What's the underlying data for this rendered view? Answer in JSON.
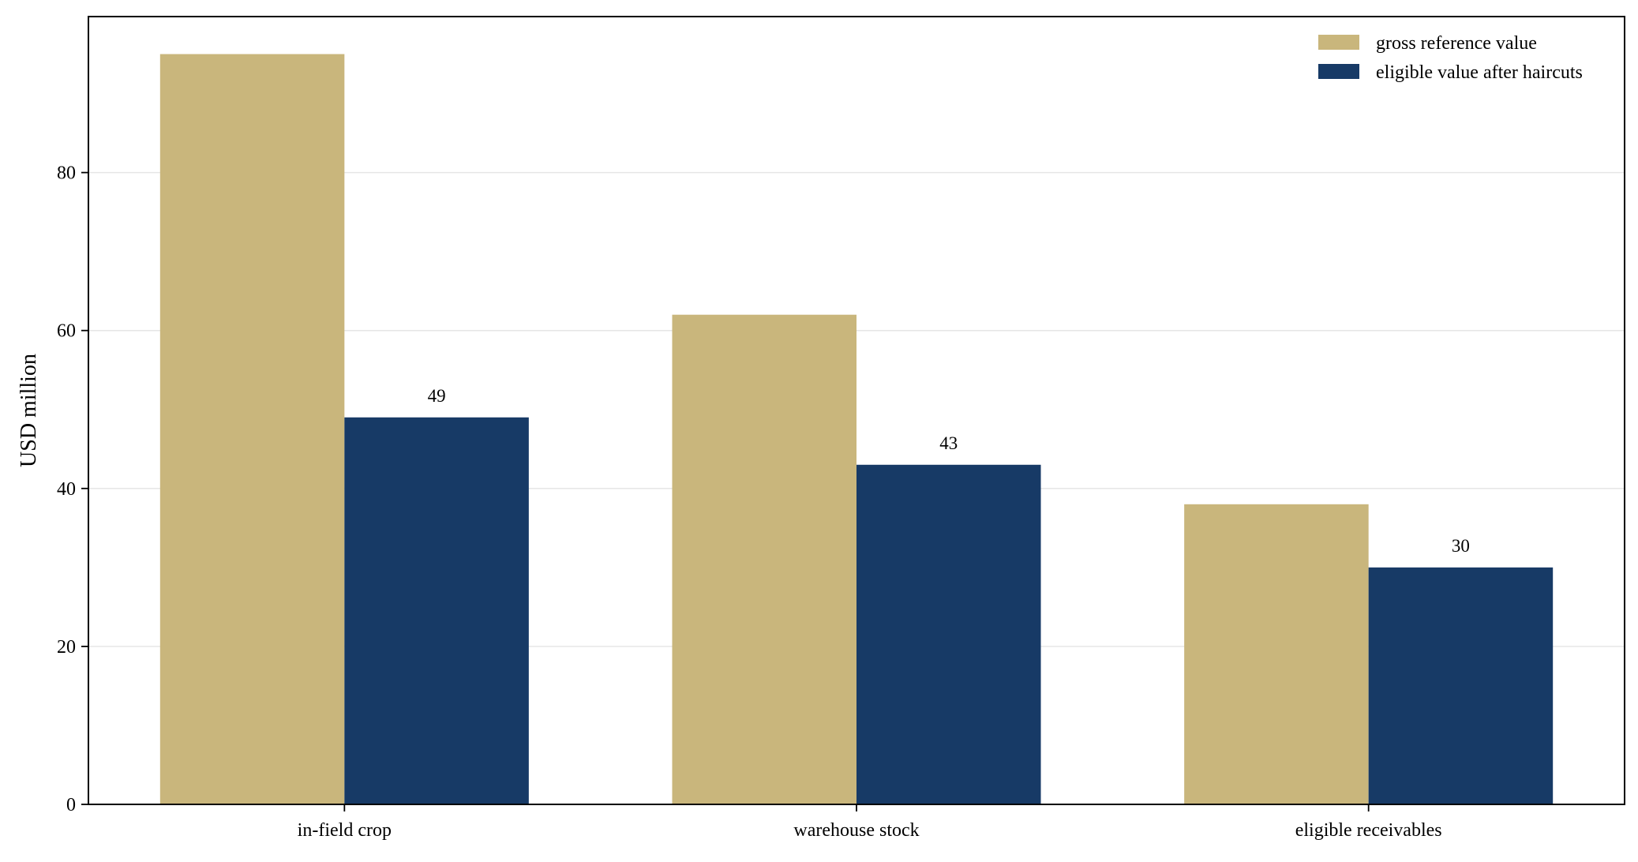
{
  "chart_data": {
    "type": "bar",
    "categories": [
      "in-field crop",
      "warehouse stock",
      "eligible receivables"
    ],
    "series": [
      {
        "name": "gross reference value",
        "values": [
          95,
          62,
          38
        ],
        "color": "#c9b67c"
      },
      {
        "name": "eligible value after haircuts",
        "values": [
          49,
          43,
          30
        ],
        "color": "#173a66"
      }
    ],
    "data_labels": {
      "series_index": 1,
      "values": [
        "49",
        "43",
        "30"
      ]
    },
    "title": "",
    "xlabel": "",
    "ylabel": "USD million",
    "ylim": [
      0,
      99.75
    ],
    "yticks": [
      0,
      20,
      40,
      60,
      80
    ],
    "ytick_labels": [
      "0",
      "20",
      "40",
      "60",
      "80"
    ],
    "grid": "horizontal",
    "legend_position": "top-right"
  }
}
